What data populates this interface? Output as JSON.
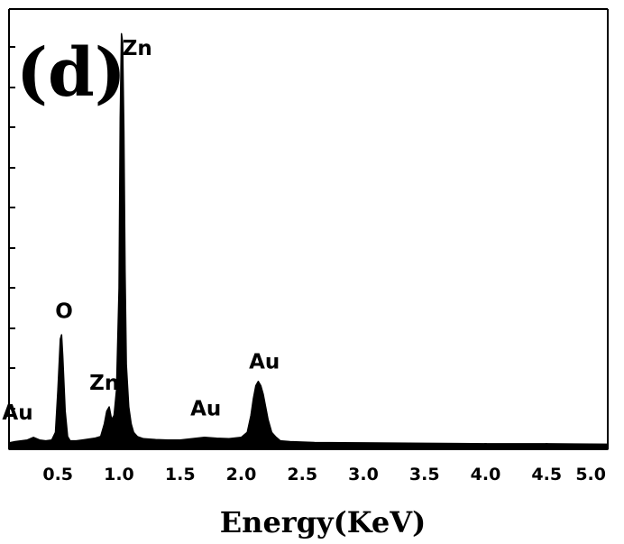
{
  "panel_label": "(d)",
  "chart_data": {
    "type": "line",
    "title": "",
    "xlabel": "Energy(KeV)",
    "ylabel": "",
    "xlim": [
      0.1,
      5.0
    ],
    "ylim": [
      0,
      100
    ],
    "x_ticks": [
      "0.5",
      "1.0",
      "1.5",
      "2.0",
      "2.5",
      "3.0",
      "3.5",
      "4.0",
      "4.5",
      "5.0"
    ],
    "y_ticks_labeled": false,
    "grid": false,
    "legend": "none",
    "series": [
      {
        "x": [
          0.1,
          0.15,
          0.2,
          0.25,
          0.3,
          0.35,
          0.4,
          0.45,
          0.48,
          0.5,
          0.52,
          0.53,
          0.54,
          0.56,
          0.58,
          0.6,
          0.65,
          0.7,
          0.75,
          0.8,
          0.85,
          0.88,
          0.9,
          0.92,
          0.94,
          0.96,
          0.98,
          1.0,
          1.01,
          1.02,
          1.03,
          1.04,
          1.05,
          1.06,
          1.08,
          1.1,
          1.12,
          1.15,
          1.2,
          1.3,
          1.4,
          1.5,
          1.6,
          1.7,
          1.8,
          1.9,
          2.0,
          2.05,
          2.08,
          2.1,
          2.12,
          2.14,
          2.16,
          2.18,
          2.2,
          2.22,
          2.25,
          2.28,
          2.32,
          2.4,
          2.6,
          3.0,
          3.5,
          4.0,
          4.5,
          5.0
        ],
        "y": [
          1.5,
          1.8,
          2.0,
          2.2,
          2.8,
          2.2,
          2.0,
          2.2,
          4,
          14,
          26,
          27,
          22,
          9,
          3,
          2.0,
          2.0,
          2.2,
          2.4,
          2.6,
          3,
          6,
          9,
          10,
          7,
          8,
          14,
          38,
          78,
          98,
          96,
          75,
          42,
          20,
          10,
          6,
          4,
          3,
          2.5,
          2.3,
          2.2,
          2.2,
          2.5,
          2.8,
          2.6,
          2.5,
          2.8,
          4,
          8,
          12,
          15,
          16,
          15,
          13,
          10,
          7,
          4,
          3,
          2.0,
          1.8,
          1.6,
          1.5,
          1.4,
          1.3,
          1.3,
          1.2
        ]
      }
    ],
    "annotations": [
      {
        "text": "Zn",
        "x": 1.15,
        "y": 93
      },
      {
        "text": "O",
        "x": 0.55,
        "y": 31
      },
      {
        "text": "Zn",
        "x": 0.88,
        "y": 14
      },
      {
        "text": "Au",
        "x": 0.17,
        "y": 7
      },
      {
        "text": "Au",
        "x": 1.71,
        "y": 8
      },
      {
        "text": "Au",
        "x": 2.19,
        "y": 19
      }
    ]
  }
}
